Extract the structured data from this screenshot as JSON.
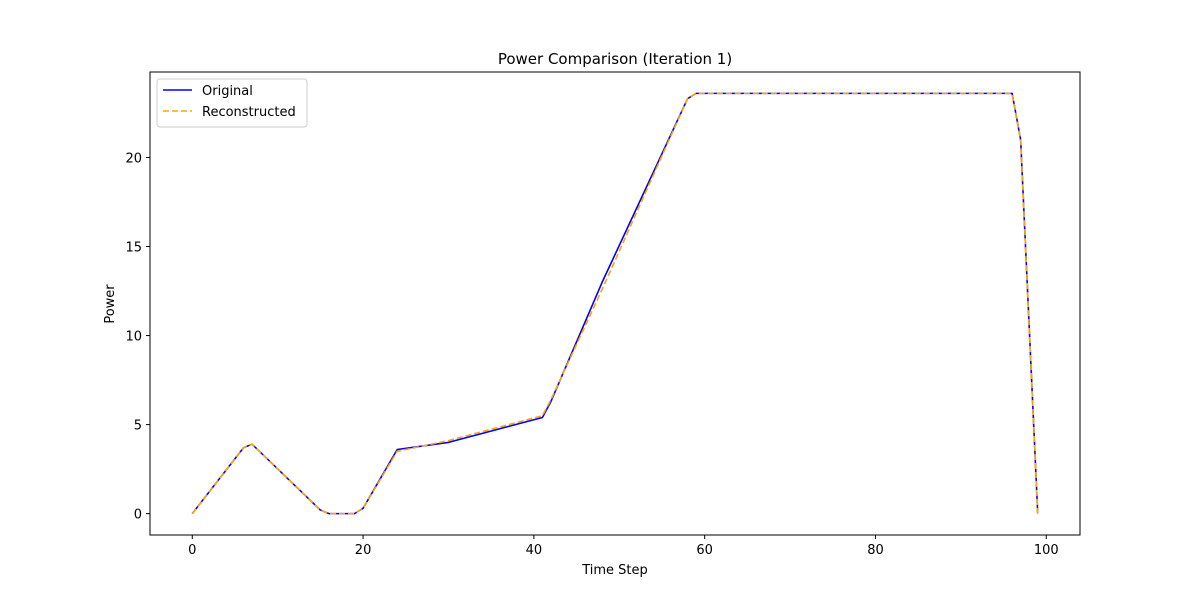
{
  "chart_data": {
    "type": "line",
    "title": "Power Comparison (Iteration 1)",
    "xlabel": "Time Step",
    "ylabel": "Power",
    "xlim": [
      -4.95,
      103.95
    ],
    "ylim": [
      -1.2,
      24.8
    ],
    "xticks": [
      0,
      20,
      40,
      60,
      80,
      100
    ],
    "yticks": [
      0,
      5,
      10,
      15,
      20
    ],
    "grid": false,
    "legend": "top-left",
    "series": [
      {
        "name": "Original",
        "color": "#0000ff",
        "style": "solid",
        "x": [
          0,
          6,
          7,
          15,
          16,
          19,
          20,
          24,
          30,
          41,
          42,
          48,
          58,
          59,
          96,
          97,
          99
        ],
        "y": [
          0,
          3.7,
          3.9,
          0.2,
          0,
          0,
          0.3,
          3.6,
          4.0,
          5.4,
          6.3,
          13.0,
          23.3,
          23.6,
          23.6,
          21.0,
          0
        ]
      },
      {
        "name": "Reconstructed",
        "color": "#ffa500",
        "style": "dashed",
        "x": [
          0,
          6,
          7,
          15,
          16,
          19,
          20,
          24,
          30,
          41,
          42,
          48,
          58,
          59,
          96,
          97,
          99
        ],
        "y": [
          0,
          3.7,
          3.9,
          0.2,
          0,
          0,
          0.3,
          3.5,
          4.1,
          5.5,
          6.4,
          12.6,
          23.3,
          23.6,
          23.6,
          21.0,
          0
        ]
      }
    ]
  }
}
